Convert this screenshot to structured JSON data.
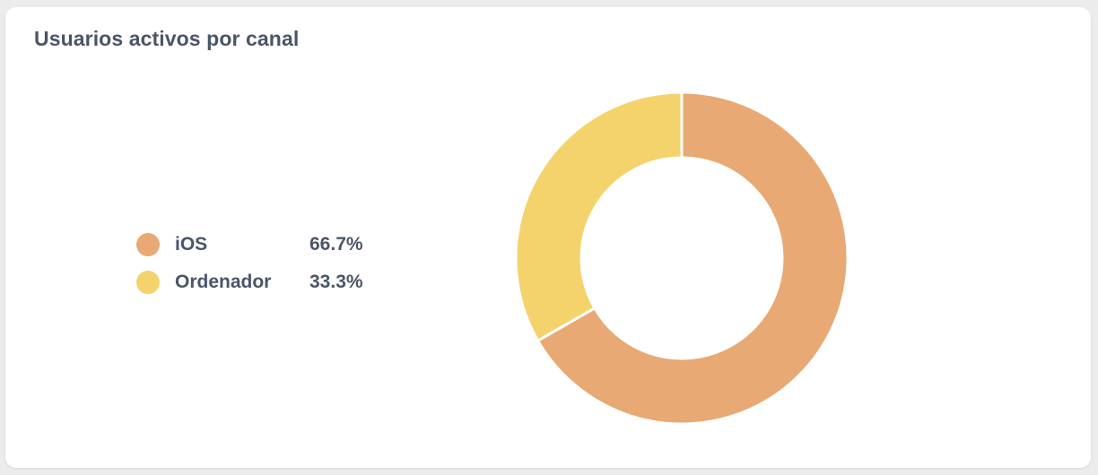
{
  "card": {
    "title": "Usuarios activos por canal"
  },
  "chart_data": {
    "type": "pie",
    "donut": true,
    "title": "Usuarios activos por canal",
    "legend_position": "left",
    "slices": [
      {
        "label": "iOS",
        "value": 66.7,
        "display": "66.7%",
        "color": "#e8a974"
      },
      {
        "label": "Ordenador",
        "value": 33.3,
        "display": "33.3%",
        "color": "#f4d36d"
      }
    ]
  }
}
